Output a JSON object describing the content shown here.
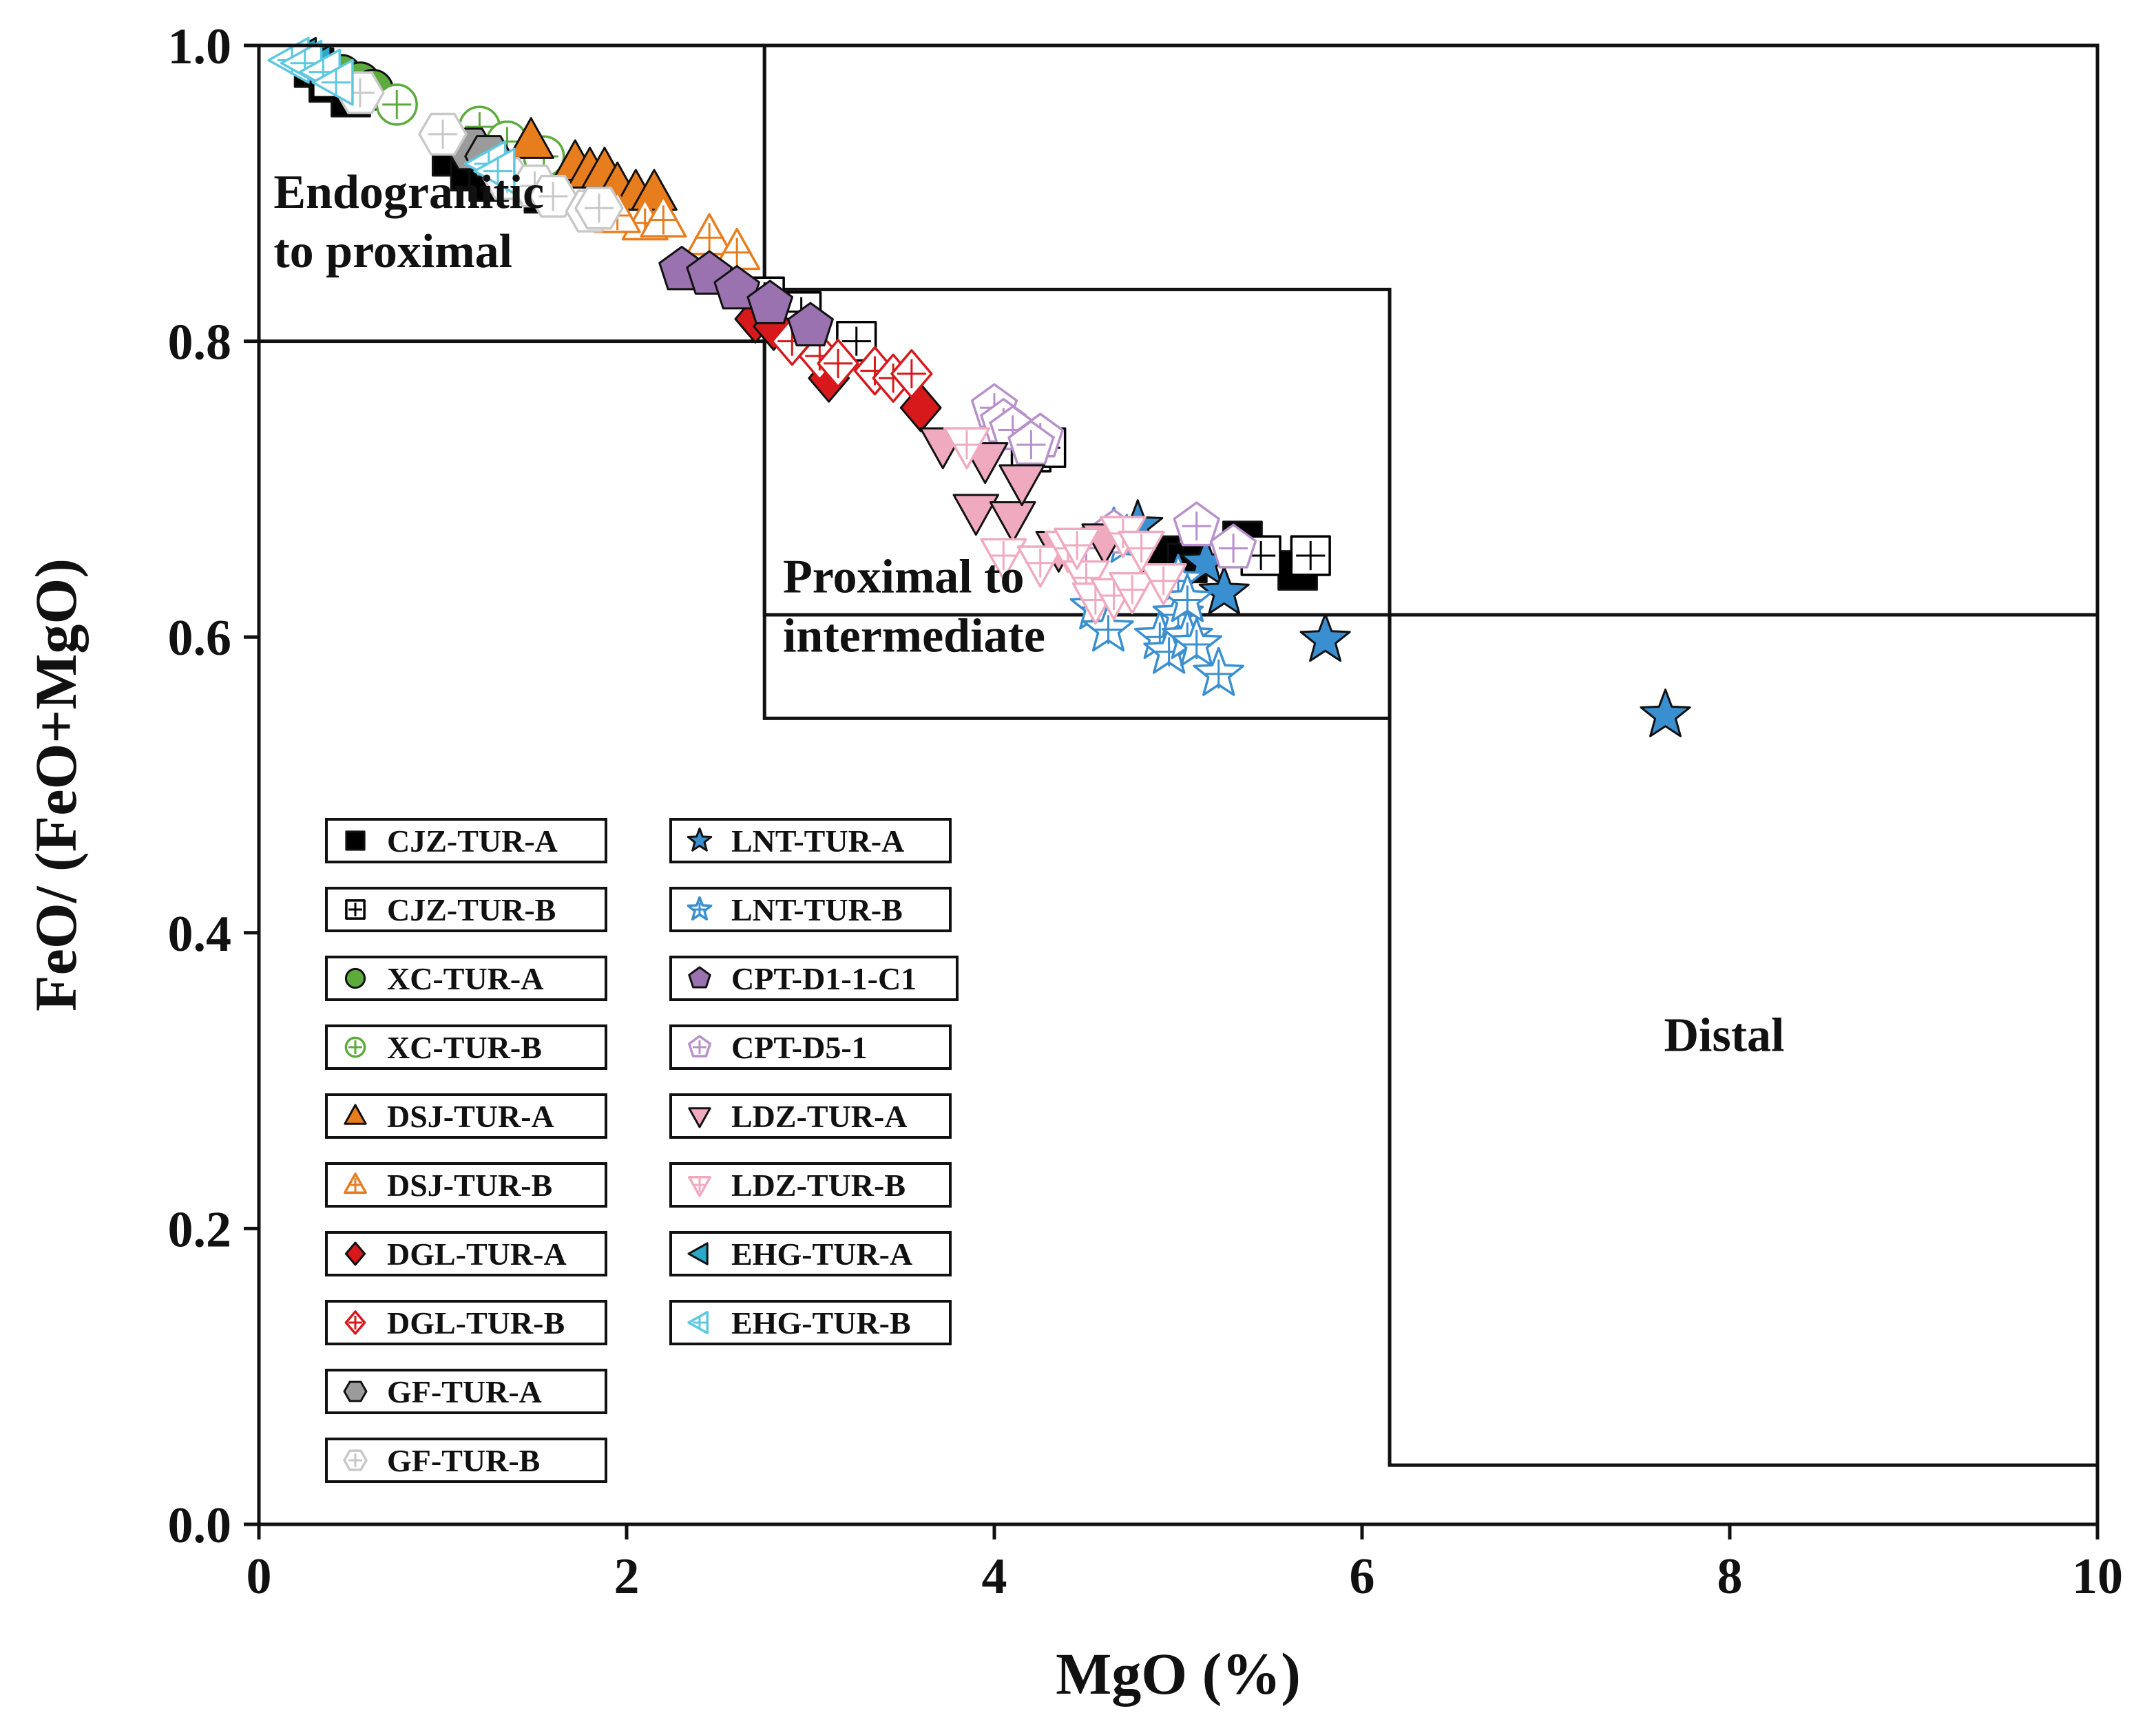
{
  "chart_data": {
    "type": "scatter",
    "title": "",
    "xlabel": "MgO (%)",
    "ylabel": "FeO/ (FeO+MgO)",
    "xlim": [
      0,
      10
    ],
    "ylim": [
      0,
      1.0
    ],
    "x_ticks": [
      0,
      2,
      4,
      6,
      8,
      10
    ],
    "x_tick_labels": [
      "0",
      "2",
      "4",
      "6",
      "8",
      "10"
    ],
    "y_ticks": [
      0.0,
      0.2,
      0.4,
      0.6,
      0.8,
      1.0
    ],
    "y_tick_labels": [
      "0.0",
      "0.2",
      "0.4",
      "0.6",
      "0.8",
      "1.0"
    ],
    "grid": false,
    "legend_position": "bottom-left",
    "regions": [
      {
        "name": "Endogranitic to proximal",
        "label_lines": [
          "Endogranitic",
          "to proximal"
        ],
        "x_range": [
          0,
          2.75
        ],
        "y_range": [
          0.8,
          1.0
        ],
        "label_at": [
          0.08,
          0.85
        ]
      },
      {
        "name": "Proximal to intermediate",
        "label_lines": [
          "Proximal to",
          "intermediate"
        ],
        "x_range": [
          2.75,
          6.15
        ],
        "y_range": [
          0.545,
          0.835
        ],
        "label_at": [
          2.85,
          0.59
        ]
      },
      {
        "name": "Distal",
        "label_lines": [
          "Distal"
        ],
        "x_range": [
          6.15,
          10
        ],
        "y_range": [
          0.04,
          0.615
        ],
        "label_at": [
          7.97,
          0.32
        ]
      },
      {
        "name": "Upper frame",
        "label_lines": [],
        "x_range": [
          2.75,
          10
        ],
        "y_range": [
          0.615,
          1.0
        ],
        "label_at": null
      }
    ],
    "series": [
      {
        "name": "CJZ-TUR-A",
        "marker": "square",
        "fill": "filled",
        "color": "#000000",
        "points": [
          [
            0.3,
            0.985
          ],
          [
            0.38,
            0.975
          ],
          [
            0.5,
            0.965
          ],
          [
            1.05,
            0.925
          ],
          [
            1.15,
            0.915
          ],
          [
            1.25,
            0.908
          ],
          [
            1.55,
            0.9
          ],
          [
            4.9,
            0.655
          ],
          [
            5.05,
            0.65
          ],
          [
            5.35,
            0.665
          ],
          [
            5.65,
            0.645
          ]
        ]
      },
      {
        "name": "CJZ-TUR-B",
        "marker": "square",
        "fill": "open-cross",
        "color": "#000000",
        "points": [
          [
            0.4,
            0.978
          ],
          [
            2.75,
            0.83
          ],
          [
            2.95,
            0.82
          ],
          [
            3.25,
            0.8
          ],
          [
            4.2,
            0.725
          ],
          [
            4.28,
            0.728
          ],
          [
            5.45,
            0.655
          ],
          [
            5.72,
            0.655
          ]
        ]
      },
      {
        "name": "XC-TUR-A",
        "marker": "circle",
        "fill": "filled",
        "color": "#5cab3c",
        "points": [
          [
            0.45,
            0.98
          ],
          [
            0.55,
            0.975
          ],
          [
            0.62,
            0.97
          ]
        ]
      },
      {
        "name": "XC-TUR-B",
        "marker": "circle",
        "fill": "open-cross",
        "color": "#5cab3c",
        "points": [
          [
            0.75,
            0.96
          ],
          [
            1.2,
            0.945
          ],
          [
            1.35,
            0.935
          ],
          [
            1.55,
            0.925
          ]
        ]
      },
      {
        "name": "DSJ-TUR-A",
        "marker": "triangle-up",
        "fill": "filled",
        "color": "#e87d1e",
        "points": [
          [
            1.48,
            0.935
          ],
          [
            1.72,
            0.92
          ],
          [
            1.8,
            0.915
          ],
          [
            1.88,
            0.915
          ],
          [
            1.95,
            0.905
          ],
          [
            2.05,
            0.9
          ],
          [
            2.15,
            0.9
          ]
        ]
      },
      {
        "name": "DSJ-TUR-B",
        "marker": "triangle-up",
        "fill": "open-cross",
        "color": "#e87d1e",
        "points": [
          [
            2.1,
            0.88
          ],
          [
            2.2,
            0.882
          ],
          [
            2.45,
            0.87
          ],
          [
            2.6,
            0.86
          ],
          [
            1.95,
            0.885
          ]
        ]
      },
      {
        "name": "DGL-TUR-A",
        "marker": "diamond",
        "fill": "filled",
        "color": "#d7191c",
        "points": [
          [
            2.7,
            0.815
          ],
          [
            2.8,
            0.81
          ],
          [
            3.1,
            0.775
          ],
          [
            3.6,
            0.755
          ]
        ]
      },
      {
        "name": "DGL-TUR-B",
        "marker": "diamond",
        "fill": "open-cross",
        "color": "#d7191c",
        "points": [
          [
            2.9,
            0.8
          ],
          [
            3.05,
            0.79
          ],
          [
            3.15,
            0.785
          ],
          [
            3.35,
            0.78
          ],
          [
            3.45,
            0.775
          ],
          [
            3.55,
            0.778
          ]
        ]
      },
      {
        "name": "GF-TUR-A",
        "marker": "hexagon",
        "fill": "filled",
        "color": "#9b9b9b",
        "points": [
          [
            1.15,
            0.93
          ],
          [
            1.25,
            0.925
          ]
        ]
      },
      {
        "name": "GF-TUR-B",
        "marker": "hexagon",
        "fill": "open-cross",
        "color": "#c8c8c8",
        "points": [
          [
            0.55,
            0.968
          ],
          [
            1.0,
            0.94
          ],
          [
            1.35,
            0.91
          ],
          [
            1.5,
            0.905
          ],
          [
            1.6,
            0.898
          ],
          [
            1.8,
            0.888
          ],
          [
            1.85,
            0.89
          ]
        ]
      },
      {
        "name": "LNT-TUR-A",
        "marker": "star",
        "fill": "filled",
        "color": "#3a8fd0",
        "points": [
          [
            4.78,
            0.675
          ],
          [
            5.15,
            0.65
          ],
          [
            5.25,
            0.63
          ],
          [
            5.8,
            0.598
          ],
          [
            7.65,
            0.547
          ]
        ]
      },
      {
        "name": "LNT-TUR-B",
        "marker": "star",
        "fill": "open-cross",
        "color": "#3a8fd0",
        "points": [
          [
            4.55,
            0.62
          ],
          [
            4.62,
            0.605
          ],
          [
            4.9,
            0.6
          ],
          [
            4.95,
            0.59
          ],
          [
            5.0,
            0.615
          ],
          [
            5.05,
            0.6
          ],
          [
            5.1,
            0.595
          ],
          [
            5.0,
            0.638
          ],
          [
            5.05,
            0.625
          ],
          [
            5.22,
            0.575
          ],
          [
            4.72,
            0.665
          ],
          [
            4.65,
            0.67
          ]
        ]
      },
      {
        "name": "CPT-D1-1-C1",
        "marker": "pentagon",
        "fill": "filled",
        "color": "#9b72b0",
        "points": [
          [
            2.3,
            0.848
          ],
          [
            2.45,
            0.845
          ],
          [
            2.6,
            0.835
          ],
          [
            2.78,
            0.825
          ],
          [
            3.0,
            0.81
          ]
        ]
      },
      {
        "name": "CPT-D5-1",
        "marker": "pentagon",
        "fill": "open-cross",
        "color": "#b890cc",
        "points": [
          [
            4.0,
            0.755
          ],
          [
            4.05,
            0.745
          ],
          [
            4.1,
            0.74
          ],
          [
            4.25,
            0.735
          ],
          [
            4.2,
            0.73
          ],
          [
            5.1,
            0.675
          ],
          [
            5.3,
            0.66
          ],
          [
            4.65,
            0.67
          ],
          [
            4.5,
            0.66
          ]
        ]
      },
      {
        "name": "LDZ-TUR-A",
        "marker": "triangle-down",
        "fill": "filled",
        "color": "#f0aac0",
        "points": [
          [
            3.72,
            0.73
          ],
          [
            3.95,
            0.72
          ],
          [
            3.9,
            0.685
          ],
          [
            4.1,
            0.68
          ],
          [
            4.15,
            0.705
          ],
          [
            4.35,
            0.66
          ],
          [
            4.6,
            0.665
          ]
        ]
      },
      {
        "name": "LDZ-TUR-B",
        "marker": "triangle-down",
        "fill": "open-cross",
        "color": "#f0aac0",
        "points": [
          [
            3.85,
            0.73
          ],
          [
            4.05,
            0.655
          ],
          [
            4.25,
            0.65
          ],
          [
            4.4,
            0.66
          ],
          [
            4.5,
            0.64
          ],
          [
            4.55,
            0.625
          ],
          [
            4.65,
            0.628
          ],
          [
            4.75,
            0.632
          ],
          [
            4.92,
            0.638
          ],
          [
            4.45,
            0.662
          ],
          [
            4.7,
            0.67
          ],
          [
            4.8,
            0.66
          ]
        ]
      },
      {
        "name": "EHG-TUR-A",
        "marker": "triangle-left",
        "fill": "filled",
        "color": "#2aa8c8",
        "points": [
          [
            0.22,
            0.99
          ],
          [
            0.3,
            0.985
          ]
        ]
      },
      {
        "name": "EHG-TUR-B",
        "marker": "triangle-left",
        "fill": "open-cross",
        "color": "#5ec8e0",
        "points": [
          [
            0.18,
            0.99
          ],
          [
            0.25,
            0.988
          ],
          [
            0.35,
            0.982
          ],
          [
            0.42,
            0.975
          ],
          [
            1.25,
            0.92
          ],
          [
            1.3,
            0.915
          ]
        ]
      }
    ]
  }
}
